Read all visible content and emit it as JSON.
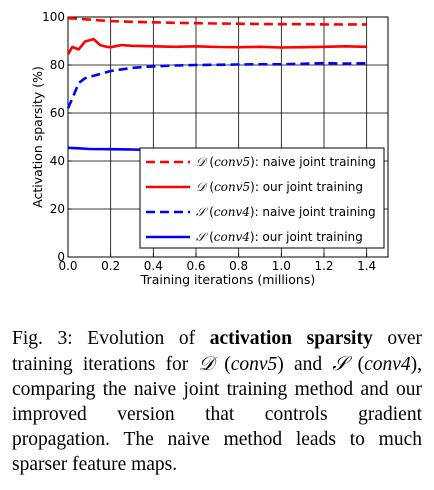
{
  "chart_data": {
    "type": "line",
    "xlabel": "Training iterations (millions)",
    "ylabel": "Activation sparsity (%)",
    "xlim": [
      0.0,
      1.5
    ],
    "ylim": [
      0,
      100
    ],
    "x_ticks": [
      "0.0",
      "0.2",
      "0.4",
      "0.6",
      "0.8",
      "1.0",
      "1.2",
      "1.4"
    ],
    "x_tick_values": [
      0.0,
      0.2,
      0.4,
      0.6,
      0.8,
      1.0,
      1.2,
      1.4
    ],
    "y_ticks": [
      "0",
      "20",
      "40",
      "60",
      "80",
      "100"
    ],
    "y_tick_values": [
      0,
      20,
      40,
      60,
      80,
      100
    ],
    "grid": true,
    "legend_position": "lower-right",
    "series": [
      {
        "label_script": "𝒟",
        "label_layer": "conv5",
        "label_text": "naive joint training",
        "color": "#ff0000",
        "style": "dashed",
        "x": [
          0.0,
          0.02,
          0.05,
          0.1,
          0.15,
          0.2,
          0.3,
          0.4,
          0.5,
          0.6,
          0.7,
          0.8,
          0.9,
          1.0,
          1.1,
          1.2,
          1.3,
          1.4
        ],
        "y": [
          99.5,
          99.4,
          99.2,
          98.9,
          98.6,
          98.3,
          98.0,
          97.8,
          97.6,
          97.4,
          97.3,
          97.2,
          97.1,
          97.0,
          97.0,
          96.9,
          96.9,
          96.9
        ]
      },
      {
        "label_script": "𝒟",
        "label_layer": "conv5",
        "label_text": "our joint training",
        "color": "#ff0000",
        "style": "solid",
        "x": [
          0.0,
          0.02,
          0.05,
          0.08,
          0.12,
          0.15,
          0.18,
          0.2,
          0.25,
          0.3,
          0.4,
          0.5,
          0.6,
          0.7,
          0.8,
          0.9,
          1.0,
          1.1,
          1.2,
          1.3,
          1.4
        ],
        "y": [
          84.5,
          87.5,
          86.5,
          89.8,
          90.8,
          88.3,
          87.6,
          87.4,
          88.3,
          88.0,
          87.8,
          87.6,
          87.8,
          87.5,
          87.4,
          87.6,
          87.3,
          87.4,
          87.6,
          87.8,
          87.6
        ]
      },
      {
        "label_script": "𝒮",
        "label_layer": "conv4",
        "label_text": "naive joint training",
        "color": "#0000ff",
        "style": "dashed",
        "x": [
          0.0,
          0.02,
          0.05,
          0.08,
          0.12,
          0.16,
          0.2,
          0.3,
          0.4,
          0.5,
          0.6,
          0.7,
          0.8,
          0.9,
          1.0,
          1.1,
          1.2,
          1.3,
          1.4
        ],
        "y": [
          62.0,
          66.0,
          72.5,
          74.5,
          75.5,
          76.5,
          77.5,
          78.8,
          79.4,
          79.8,
          80.0,
          80.1,
          80.2,
          80.3,
          80.3,
          80.5,
          80.8,
          80.6,
          80.7
        ]
      },
      {
        "label_script": "𝒮",
        "label_layer": "conv4",
        "label_text": "our joint training",
        "color": "#0000ff",
        "style": "solid",
        "x": [
          0.0,
          0.05,
          0.1,
          0.2,
          0.3,
          0.4,
          0.5,
          0.6,
          0.7,
          0.8,
          0.9,
          1.0,
          1.1,
          1.2,
          1.3,
          1.4
        ],
        "y": [
          45.5,
          45.3,
          45.0,
          44.9,
          44.8,
          44.6,
          44.6,
          44.7,
          44.6,
          44.6,
          44.5,
          44.6,
          44.7,
          44.6,
          44.5,
          44.5
        ]
      }
    ]
  },
  "caption": {
    "prefix": "Fig. 3: Evolution of ",
    "bold": "activation sparsity",
    "part1": " over training iterations for ",
    "d_symbol": "𝒟",
    "d_layer": "conv5",
    "part2": " and ",
    "s_symbol": "𝒮",
    "s_layer": "conv4",
    "part3": ", comparing the naive joint training method and our improved version that controls gradient propagation. The naive method leads to much sparser feature maps."
  }
}
